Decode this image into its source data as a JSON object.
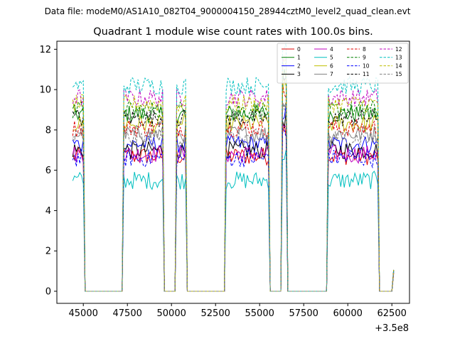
{
  "chart_data": {
    "type": "line",
    "suptitle": "Data file: modeM0/AS1A10_082T04_9000004150_28944cztM0_level2_quad_clean.evt",
    "title": "Quadrant 1 module wise count rates with 100.0s bins.",
    "xlabel": "",
    "ylabel": "",
    "x_offset_label": "+3.5e8",
    "xlim": [
      43500,
      63500
    ],
    "ylim": [
      -0.6,
      12.4
    ],
    "xticks": [
      45000,
      47500,
      50000,
      52500,
      55000,
      57500,
      60000,
      62500
    ],
    "xtick_labels": [
      "45000",
      "47500",
      "50000",
      "52500",
      "55000",
      "57500",
      "60000",
      "62500"
    ],
    "yticks": [
      0,
      2,
      4,
      6,
      8,
      10,
      12
    ],
    "ytick_labels": [
      "0",
      "2",
      "4",
      "6",
      "8",
      "10",
      "12"
    ],
    "legend_position": "top-right",
    "segments": [
      {
        "start": 44400,
        "end": 45000,
        "drop_end": 45100
      },
      {
        "start": 47300,
        "end": 49500,
        "drop_start": 47200,
        "drop_end": 49600
      },
      {
        "start": 50300,
        "end": 50800,
        "drop_start": 50200,
        "drop_end": 50900
      },
      {
        "start": 53100,
        "end": 55500,
        "drop_start": 53000,
        "drop_end": 55600
      },
      {
        "start": 56300,
        "end": 56500,
        "drop_start": 56200,
        "drop_end": 56600
      },
      {
        "start": 58900,
        "end": 61700,
        "drop_start": 58800,
        "drop_end": 61800
      }
    ],
    "x_end_rise": [
      62300,
      62600
    ],
    "series": [
      {
        "name": "0",
        "color": "#e00000",
        "dash": false,
        "level": 6.7
      },
      {
        "name": "1",
        "color": "#008000",
        "dash": false,
        "level": 8.8
      },
      {
        "name": "2",
        "color": "#0000ff",
        "dash": false,
        "level": 7.3
      },
      {
        "name": "3",
        "color": "#000000",
        "dash": false,
        "level": 7.0
      },
      {
        "name": "4",
        "color": "#bf00bf",
        "dash": false,
        "level": 6.8
      },
      {
        "name": "5",
        "color": "#00bfbf",
        "dash": false,
        "level": 5.5
      },
      {
        "name": "6",
        "color": "#bfbf00",
        "dash": false,
        "level": 8.3
      },
      {
        "name": "7",
        "color": "#808080",
        "dash": false,
        "level": 7.8
      },
      {
        "name": "8",
        "color": "#e00000",
        "dash": true,
        "level": 8.1
      },
      {
        "name": "9",
        "color": "#008000",
        "dash": true,
        "level": 9.0
      },
      {
        "name": "10",
        "color": "#0000ff",
        "dash": true,
        "level": 6.6
      },
      {
        "name": "11",
        "color": "#000000",
        "dash": true,
        "level": 8.6
      },
      {
        "name": "12",
        "color": "#bf00bf",
        "dash": true,
        "level": 9.6
      },
      {
        "name": "13",
        "color": "#00bfbf",
        "dash": true,
        "level": 10.2
      },
      {
        "name": "14",
        "color": "#bfbf00",
        "dash": true,
        "level": 9.3
      },
      {
        "name": "15",
        "color": "#808080",
        "dash": true,
        "level": 7.6
      }
    ]
  }
}
